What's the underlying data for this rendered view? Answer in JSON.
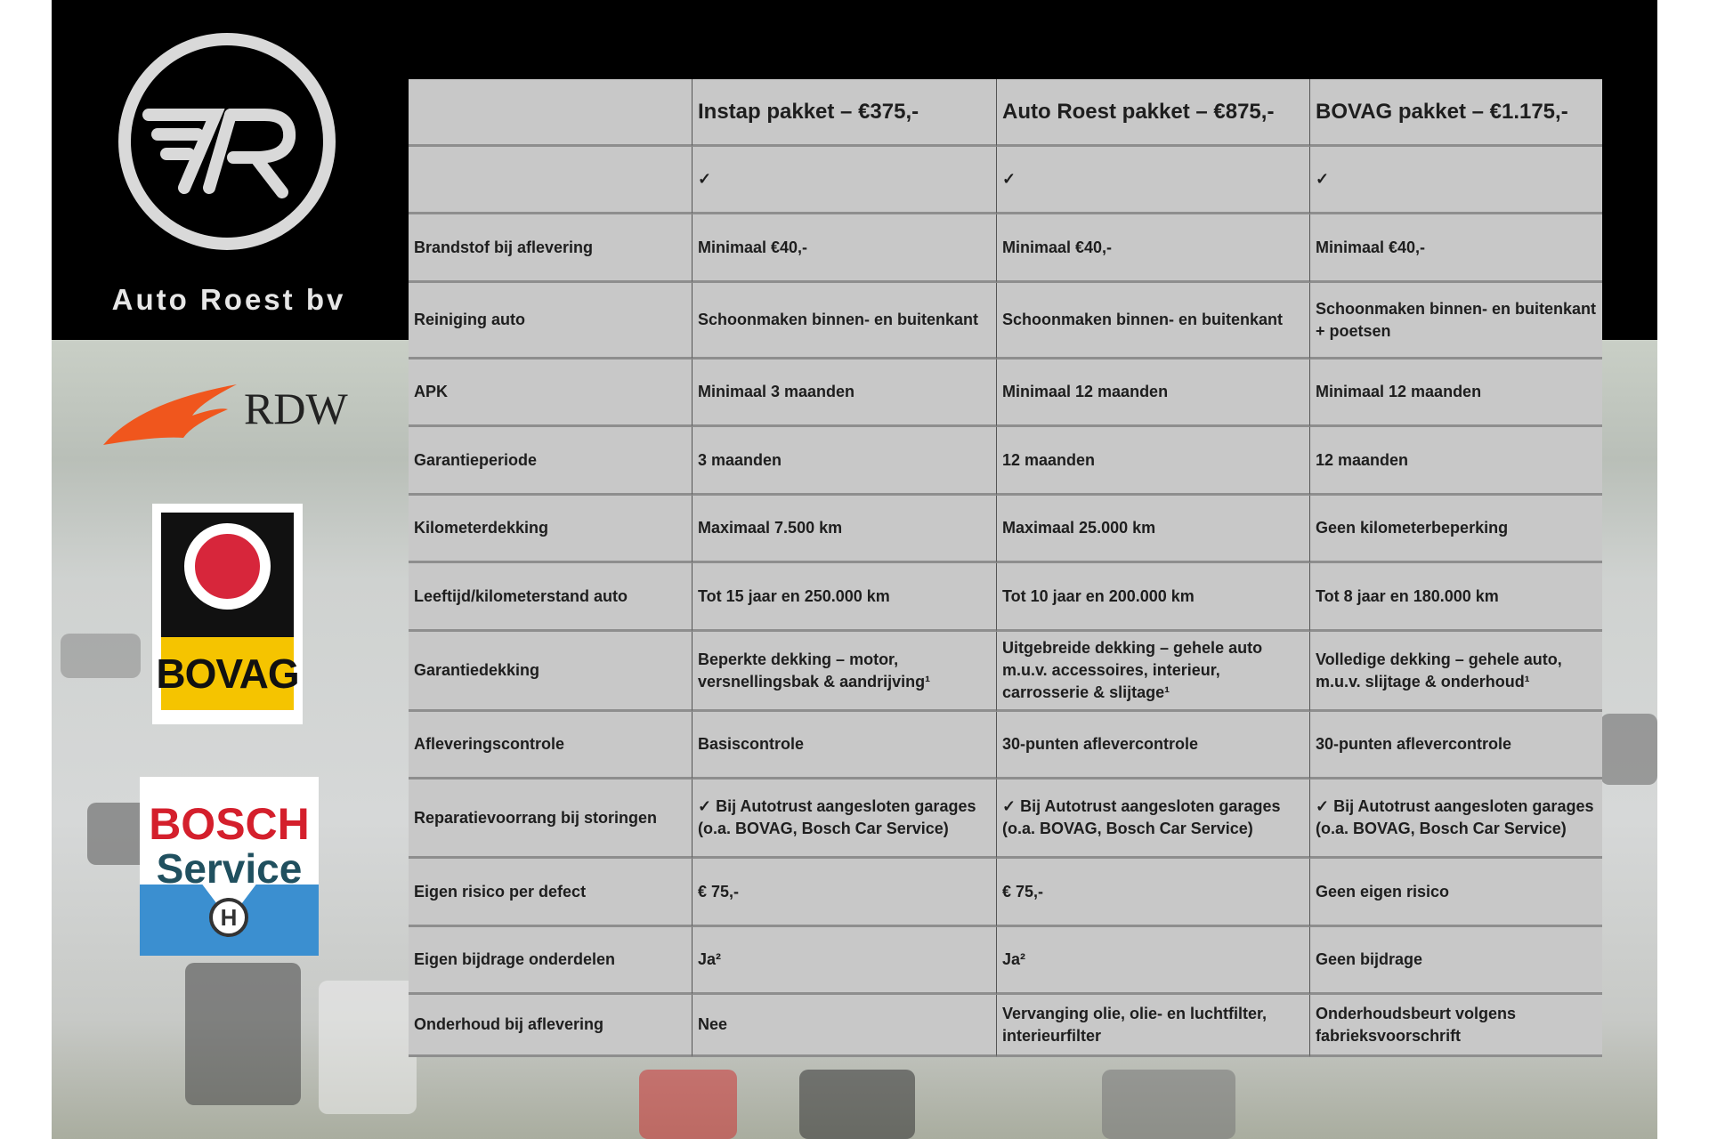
{
  "brand": {
    "name": "Auto Roest bv",
    "logos": [
      "RDW",
      "BOVAG",
      "BOSCH Service"
    ]
  },
  "table": {
    "headers": [
      "",
      "Instap pakket – €375,-",
      "Auto Roest pakket – €875,-",
      "BOVAG pakket – €1.175,-"
    ],
    "rows": [
      [
        "",
        "✓",
        "✓",
        "✓"
      ],
      [
        "Brandstof bij aflevering",
        "Minimaal €40,-",
        "Minimaal €40,-",
        "Minimaal €40,-"
      ],
      [
        "Reiniging auto",
        "Schoonmaken binnen- en buitenkant",
        "Schoonmaken binnen- en buitenkant",
        "Schoonmaken binnen- en buitenkant + poetsen"
      ],
      [
        "APK",
        "Minimaal 3 maanden",
        "Minimaal 12 maanden",
        "Minimaal 12 maanden"
      ],
      [
        "Garantieperiode",
        "3 maanden",
        "12 maanden",
        "12 maanden"
      ],
      [
        "Kilometerdekking",
        "Maximaal 7.500 km",
        "Maximaal 25.000 km",
        "Geen kilometerbeperking"
      ],
      [
        "Leeftijd/kilometerstand auto",
        "Tot 15 jaar en 250.000 km",
        "Tot 10 jaar en 200.000 km",
        "Tot 8 jaar en 180.000 km"
      ],
      [
        "Garantiedekking",
        "Beperkte dekking – motor, versnellingsbak & aandrijving¹",
        "Uitgebreide dekking – gehele auto m.u.v. accessoires, interieur, carrosserie & slijtage¹",
        "Volledige dekking – gehele auto, m.u.v. slijtage & onderhoud¹"
      ],
      [
        "Afleveringscontrole",
        "Basiscontrole",
        "30-punten aflevercontrole",
        "30-punten aflevercontrole"
      ],
      [
        "Reparatievoorrang bij storingen",
        "✓ Bij Autotrust aangesloten garages (o.a. BOVAG, Bosch Car Service)",
        "✓ Bij Autotrust aangesloten garages (o.a. BOVAG, Bosch Car Service)",
        "✓ Bij Autotrust aangesloten garages (o.a. BOVAG, Bosch Car Service)"
      ],
      [
        "Eigen risico per defect",
        "€ 75,-",
        "€ 75,-",
        "Geen eigen risico"
      ],
      [
        "Eigen bijdrage onderdelen",
        "Ja²",
        "Ja²",
        "Geen bijdrage"
      ],
      [
        "Onderhoud bij aflevering",
        "Nee",
        "Vervanging olie, olie- en luchtfilter, interieurfilter",
        "Onderhoudsbeurt volgens fabrieksvoorschrift"
      ]
    ]
  }
}
